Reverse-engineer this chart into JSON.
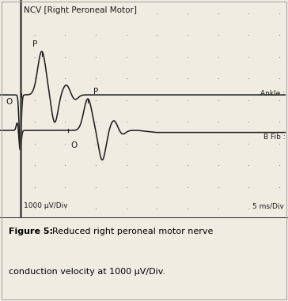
{
  "title": "NCV [Right Peroneal Motor]",
  "label_ankle": "Ankle :",
  "label_bfib": "B Fib :",
  "bottom_left": "1000 μV/Div",
  "bottom_right": "5 ms/Div",
  "fig_bg": "#f0ece2",
  "plot_bg": "#f0ece2",
  "line_color": "#1a1a1a",
  "dot_color": "#888888",
  "border_color": "#444444",
  "caption_bold": "Figure 5:",
  "caption_rest": "  Reduced right peroneal motor nerve\nconduction velocity at 1000 μV/Div.",
  "fig_width": 3.64,
  "fig_height": 3.81,
  "ankle_baseline": 3.2,
  "bfib_baseline": 1.4
}
